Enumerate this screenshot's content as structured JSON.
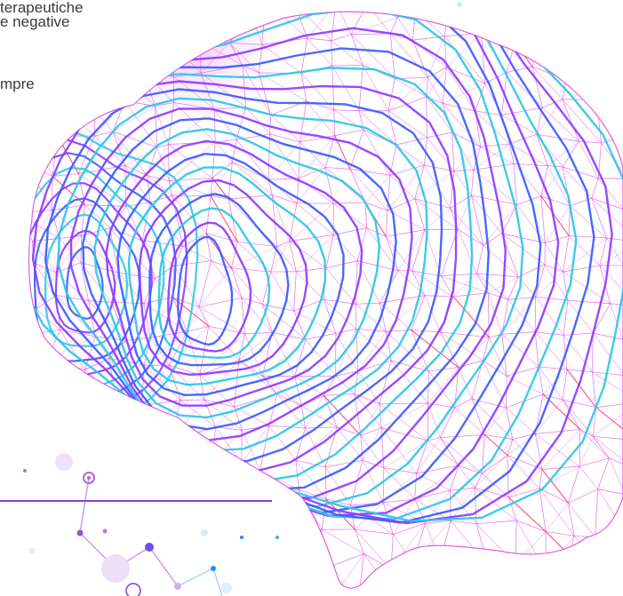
{
  "text_fragments": [
    {
      "id": "frag-1",
      "text": "terapeutiche"
    },
    {
      "id": "frag-2",
      "text": "e negative"
    },
    {
      "id": "frag-3",
      "text": "mpre"
    }
  ],
  "illustration": {
    "subject": "brain-wireframe",
    "colors": {
      "mesh": "#e04ce0",
      "contour_blue": "#3b5bff",
      "contour_violet": "#8f3bff",
      "contour_cyan": "#2ec6e8",
      "accent_red": "#ff2b55",
      "glow": "#f7c4f4",
      "rule": "#8a3fc9",
      "dot_purple": "#7b3fd0",
      "dot_blue": "#2a8cff"
    }
  }
}
